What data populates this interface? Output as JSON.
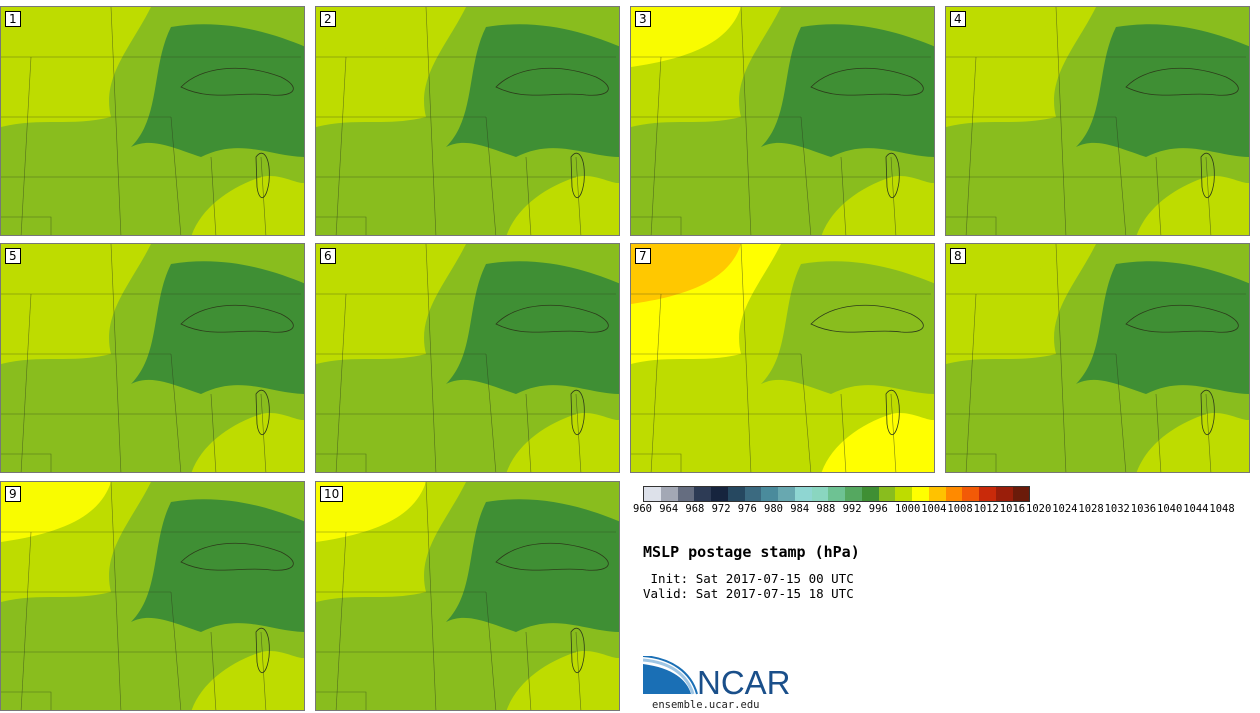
{
  "title": "MSLP postage stamp (hPa)",
  "init_label": " Init:",
  "init_value": "Sat 2017-07-15 00 UTC",
  "valid_label": "Valid:",
  "valid_value": "Sat 2017-07-15 18 UTC",
  "logo_text": "NCAR",
  "site": "ensemble.ucar.edu",
  "colorbar": {
    "labels": [
      "960",
      "964",
      "968",
      "972",
      "976",
      "980",
      "984",
      "988",
      "992",
      "996",
      "1000",
      "1004",
      "1008",
      "1012",
      "1016",
      "1020",
      "1024",
      "1028",
      "1032",
      "1036",
      "1040",
      "1044",
      "1048"
    ],
    "colors": [
      "#dde1ea",
      "#a3a8b5",
      "#656d80",
      "#2d3b55",
      "#16243e",
      "#264860",
      "#3b6a80",
      "#4a8b9c",
      "#68a8b0",
      "#8fd6d2",
      "#8ad6c0",
      "#6ec293",
      "#55a860",
      "#3f8f34",
      "#89bd1e",
      "#bedc00",
      "#ffff00",
      "#ffc200",
      "#ff8a00",
      "#f25a07",
      "#c92a0a",
      "#9a1e0a",
      "#6b1b0a"
    ]
  },
  "panels": [
    {
      "label": "1",
      "base": "#bedc00",
      "mid": "#89bd1e",
      "dark": "#3f8f34",
      "warm": "#bedc00"
    },
    {
      "label": "2",
      "base": "#bedc00",
      "mid": "#89bd1e",
      "dark": "#3f8f34",
      "warm": "#bedc00"
    },
    {
      "label": "3",
      "base": "#bedc00",
      "mid": "#89bd1e",
      "dark": "#3f8f34",
      "warm": "#ffff00"
    },
    {
      "label": "4",
      "base": "#bedc00",
      "mid": "#89bd1e",
      "dark": "#3f8f34",
      "warm": "#bedc00"
    },
    {
      "label": "5",
      "base": "#bedc00",
      "mid": "#89bd1e",
      "dark": "#3f8f34",
      "warm": "#bedc00"
    },
    {
      "label": "6",
      "base": "#bedc00",
      "mid": "#89bd1e",
      "dark": "#3f8f34",
      "warm": "#bedc00"
    },
    {
      "label": "7",
      "base": "#ffff00",
      "mid": "#bedc00",
      "dark": "#89bd1e",
      "warm": "#ffc200"
    },
    {
      "label": "8",
      "base": "#bedc00",
      "mid": "#89bd1e",
      "dark": "#3f8f34",
      "warm": "#bedc00"
    },
    {
      "label": "9",
      "base": "#bedc00",
      "mid": "#89bd1e",
      "dark": "#3f8f34",
      "warm": "#ffff00"
    },
    {
      "label": "10",
      "base": "#bedc00",
      "mid": "#89bd1e",
      "dark": "#3f8f34",
      "warm": "#ffff00"
    }
  ]
}
